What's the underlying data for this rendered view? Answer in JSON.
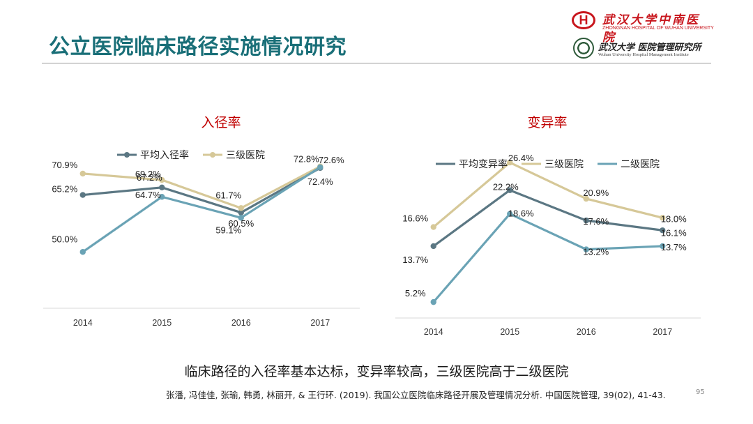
{
  "slide": {
    "title": "公立医院临床路径实施情况研究",
    "conclusion": "临床路径的入径率基本达标，变异率较高，三级医院高于二级医院",
    "reference": "张潘, 冯佳佳, 张瑜, 韩勇, 林丽开, & 王行环. (2019). 我国公立医院临床路径开展及管理情况分析. 中国医院管理, 39(02), 41-43.",
    "page_number": "95"
  },
  "logos": {
    "hospital_mark": "H",
    "hospital_cn": "武汉大学中南医院",
    "hospital_en": "ZHONGNAN HOSPITAL OF WUHAN UNIVERSITY",
    "institute_cn": "武汉大学 医院管理研究所",
    "institute_en": "Wuhan University Hospital Management Institute"
  },
  "colors": {
    "title": "#1a6f78",
    "chart_title": "#c00000",
    "series_dark": "#5b7783",
    "series_gold": "#d6c898",
    "series_blue": "#6aa3b5"
  },
  "chart_data": [
    {
      "type": "line",
      "title": "入径率",
      "categories": [
        "2014",
        "2015",
        "2016",
        "2017"
      ],
      "ylim": [
        40,
        80
      ],
      "legend": "top-left",
      "series": [
        {
          "name": "平均入径率",
          "values": [
            65.2,
            67.2,
            60.5,
            72.4
          ],
          "labels": [
            "65.2%",
            "67.2%",
            "60.5%",
            "72.4%"
          ],
          "color": "#5b7783"
        },
        {
          "name": "三级医院",
          "values": [
            70.9,
            69.2,
            61.7,
            72.8
          ],
          "labels": [
            "70.9%",
            "69.2%",
            "61.7%",
            "72.8%"
          ],
          "color": "#d6c898"
        },
        {
          "name": "",
          "values": [
            50.0,
            64.7,
            59.1,
            72.6
          ],
          "labels": [
            "50.0%",
            "64.7%",
            "59.1%",
            "72.6%"
          ],
          "color": "#6aa3b5"
        }
      ]
    },
    {
      "type": "line",
      "title": "变异率",
      "categories": [
        "2014",
        "2015",
        "2016",
        "2017"
      ],
      "ylim": [
        5,
        28
      ],
      "legend": "top",
      "series": [
        {
          "name": "平均变异率",
          "values": [
            13.7,
            22.2,
            17.6,
            16.1
          ],
          "labels": [
            "13.7%",
            "22.2%",
            "17.6%",
            "16.1%"
          ],
          "color": "#5b7783"
        },
        {
          "name": "三级医院",
          "values": [
            16.6,
            26.4,
            20.9,
            18.0
          ],
          "labels": [
            "16.6%",
            "26.4%",
            "20.9%",
            "18.0%"
          ],
          "color": "#d6c898"
        },
        {
          "name": "二级医院",
          "values": [
            5.2,
            18.6,
            13.2,
            13.7
          ],
          "labels": [
            "5.2%",
            "18.6%",
            "13.2%",
            "13.7%"
          ],
          "color": "#6aa3b5"
        }
      ]
    }
  ]
}
